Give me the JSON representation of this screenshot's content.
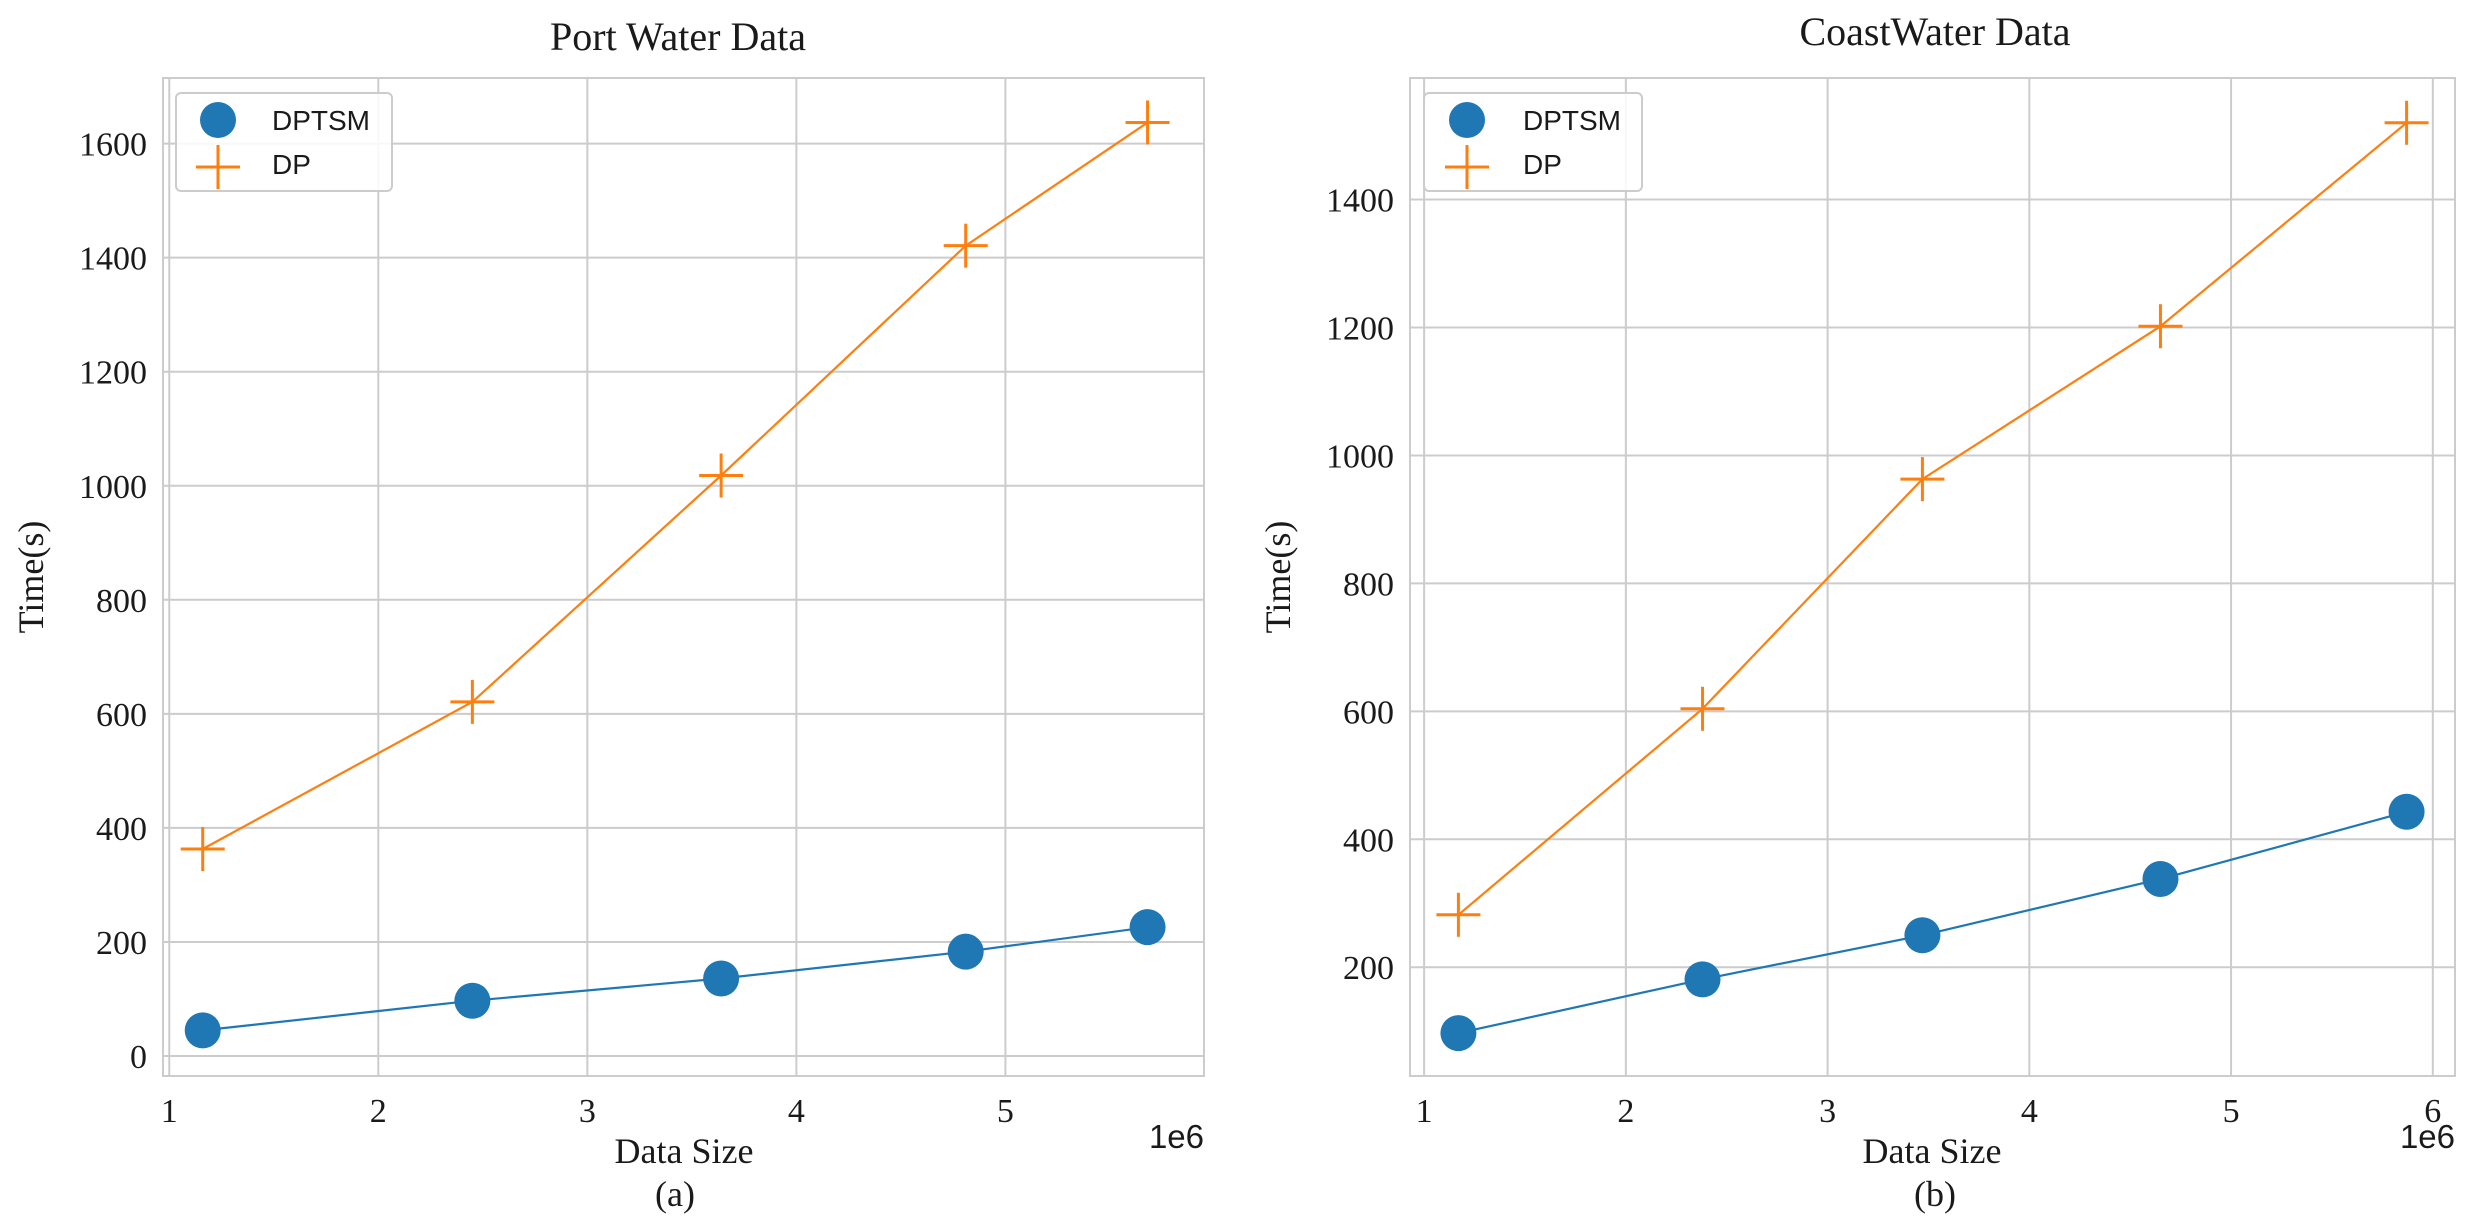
{
  "chart_data": [
    {
      "type": "line",
      "title": "Port Water Data",
      "xlabel": "Data Size",
      "ylabel": "Time(s)",
      "caption": "(a)",
      "x_offset_label": "1e6",
      "xlim": [
        0.97,
        5.95
      ],
      "ylim": [
        -35,
        1715
      ],
      "x_ticks": [
        1,
        2,
        3,
        4,
        5
      ],
      "y_ticks": [
        0,
        200,
        400,
        600,
        800,
        1000,
        1200,
        1400,
        1600
      ],
      "grid": true,
      "legend_position": "upper-left",
      "series": [
        {
          "name": "DPTSM",
          "color": "#1f77b4",
          "marker": "circle",
          "x": [
            1.16,
            2.45,
            3.64,
            4.81,
            5.68
          ],
          "y": [
            45,
            97,
            136,
            183,
            226
          ]
        },
        {
          "name": "DP",
          "color": "#ff7f0e",
          "marker": "plus",
          "x": [
            1.16,
            2.45,
            3.64,
            4.81,
            5.68
          ],
          "y": [
            363,
            621,
            1018,
            1421,
            1637
          ]
        }
      ]
    },
    {
      "type": "line",
      "title": "CoastWater Data",
      "xlabel": "Data Size",
      "ylabel": "Time(s)",
      "caption": "(b)",
      "x_offset_label": "1e6",
      "xlim": [
        0.93,
        6.11
      ],
      "ylim": [
        30,
        1590
      ],
      "x_ticks": [
        1,
        2,
        3,
        4,
        5,
        6
      ],
      "y_ticks": [
        200,
        400,
        600,
        800,
        1000,
        1200,
        1400
      ],
      "grid": true,
      "legend_position": "upper-left",
      "series": [
        {
          "name": "DPTSM",
          "color": "#1f77b4",
          "marker": "circle",
          "x": [
            1.17,
            2.38,
            3.47,
            4.65,
            5.87
          ],
          "y": [
            97,
            181,
            250,
            338,
            443
          ]
        },
        {
          "name": "DP",
          "color": "#ff7f0e",
          "marker": "plus",
          "x": [
            1.17,
            2.38,
            3.47,
            4.65,
            5.87
          ],
          "y": [
            282,
            604,
            963,
            1202,
            1520
          ]
        }
      ]
    }
  ]
}
